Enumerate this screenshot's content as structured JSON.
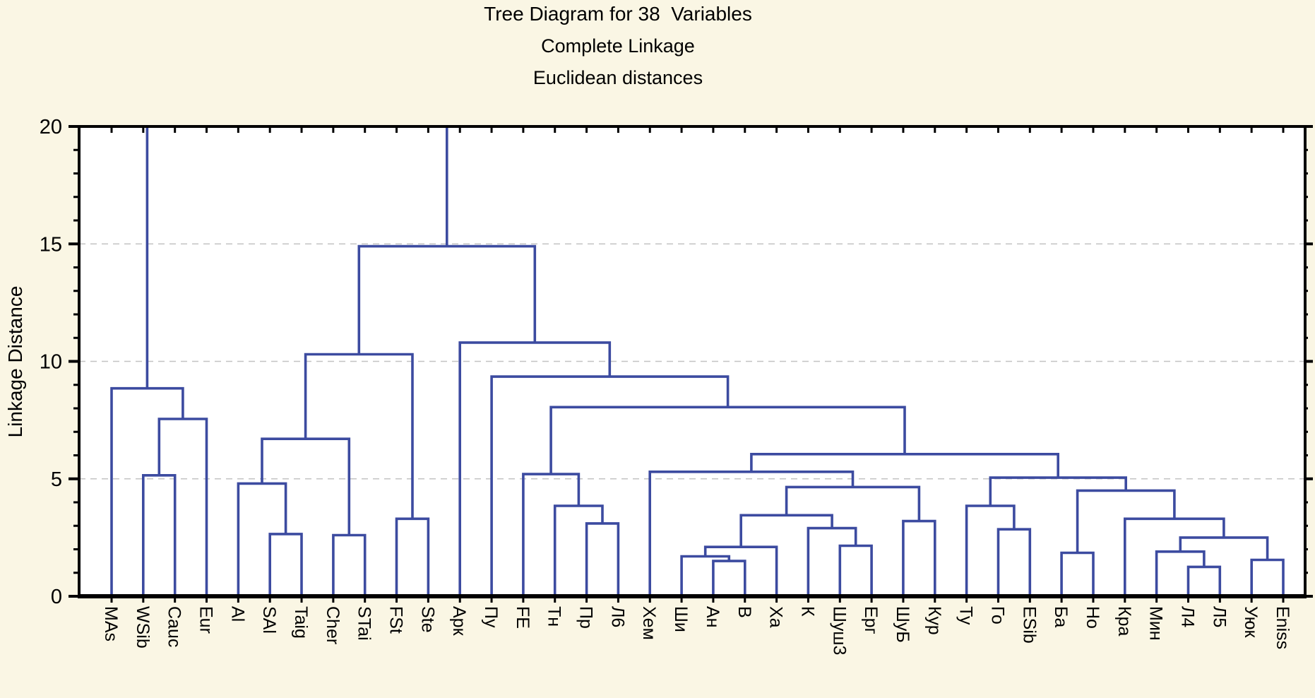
{
  "titles": {
    "line1": "Tree Diagram for 38  Variables",
    "line2": "Complete Linkage",
    "line3": "Euclidean distances"
  },
  "y_axis": {
    "label": "Linkage Distance",
    "major_ticks": [
      0,
      5,
      10,
      15,
      20
    ],
    "minor_step": 1,
    "range": [
      0,
      20
    ],
    "gridlines": [
      5,
      10,
      15
    ]
  },
  "colors": {
    "background": "#faf6e4",
    "plot_background": "#ffffff",
    "tree_line": "#3c4ba0",
    "axis": "#000000",
    "gridline": "#c3c3c3",
    "text": "#000000"
  },
  "chart_data": {
    "type": "dendrogram",
    "title": "Tree Diagram for 38  Variables",
    "subtitle1": "Complete Linkage",
    "subtitle2": "Euclidean distances",
    "ylabel": "Linkage Distance",
    "ylim": [
      0,
      20
    ],
    "grid": "dashed horizontal at 5,10,15",
    "leaves": [
      "MAs",
      "WSib",
      "Cauc",
      "Eur",
      "Al",
      "SAl",
      "Taig",
      "Cher",
      "STai",
      "FSt",
      "Ste",
      "Арк",
      "Пу",
      "FE",
      "Тн",
      "Пр",
      "Л6",
      "Хем",
      "Ши",
      "Ан",
      "В",
      "Ха",
      "К",
      "Шуш3",
      "Ерг",
      "ШуБ",
      "Кур",
      "Ту",
      "Го",
      "ESib",
      "Ба",
      "Но",
      "Кра",
      "Мин",
      "Л4",
      "Л5",
      "Уюк",
      "Eniss"
    ],
    "merges": [
      {
        "id": "c1",
        "a": "WSib",
        "b": "Cauc",
        "h": 5.15
      },
      {
        "id": "c2",
        "a": "c1",
        "b": "Eur",
        "h": 7.55
      },
      {
        "id": "c3",
        "a": "MAs",
        "b": "c2",
        "h": 8.85,
        "to_top": true
      },
      {
        "id": "c4",
        "a": "SAl",
        "b": "Taig",
        "h": 2.65
      },
      {
        "id": "c5",
        "a": "Al",
        "b": "c4",
        "h": 4.8
      },
      {
        "id": "c6",
        "a": "Cher",
        "b": "STai",
        "h": 2.6
      },
      {
        "id": "c7",
        "a": "c5",
        "b": "c6",
        "h": 6.7
      },
      {
        "id": "c8",
        "a": "FSt",
        "b": "Ste",
        "h": 3.3
      },
      {
        "id": "c9",
        "a": "c7",
        "b": "c8",
        "h": 10.3
      },
      {
        "id": "c10",
        "a": "Пр",
        "b": "Л6",
        "h": 3.1
      },
      {
        "id": "c11",
        "a": "Тн",
        "b": "c10",
        "h": 3.85
      },
      {
        "id": "c12",
        "a": "FE",
        "b": "c11",
        "h": 5.2
      },
      {
        "id": "c13",
        "a": "Ан",
        "b": "В",
        "h": 1.5
      },
      {
        "id": "c14",
        "a": "Ши",
        "b": "c13",
        "h": 1.7
      },
      {
        "id": "c15",
        "a": "c14",
        "b": "Ха",
        "h": 2.1
      },
      {
        "id": "c16",
        "a": "Шуш3",
        "b": "Ерг",
        "h": 2.15
      },
      {
        "id": "c17",
        "a": "К",
        "b": "c16",
        "h": 2.9
      },
      {
        "id": "c18",
        "a": "c15",
        "b": "c17",
        "h": 3.45
      },
      {
        "id": "c19",
        "a": "ШуБ",
        "b": "Кур",
        "h": 3.2
      },
      {
        "id": "c20",
        "a": "c18",
        "b": "c19",
        "h": 4.65
      },
      {
        "id": "c21",
        "a": "Хем",
        "b": "c20",
        "h": 5.3
      },
      {
        "id": "c22",
        "a": "Го",
        "b": "ESib",
        "h": 2.85
      },
      {
        "id": "c23",
        "a": "Ту",
        "b": "c22",
        "h": 3.85
      },
      {
        "id": "c24",
        "a": "Ба",
        "b": "Но",
        "h": 1.85
      },
      {
        "id": "c25",
        "a": "Л4",
        "b": "Л5",
        "h": 1.25
      },
      {
        "id": "c26",
        "a": "Мин",
        "b": "c25",
        "h": 1.9
      },
      {
        "id": "c27",
        "a": "Уюк",
        "b": "Eniss",
        "h": 1.55
      },
      {
        "id": "c28",
        "a": "c26",
        "b": "c27",
        "h": 2.5
      },
      {
        "id": "c29",
        "a": "Кра",
        "b": "c28",
        "h": 3.3
      },
      {
        "id": "c30",
        "a": "c24",
        "b": "c29",
        "h": 4.5
      },
      {
        "id": "c31",
        "a": "c23",
        "b": "c30",
        "h": 5.05
      },
      {
        "id": "c32",
        "a": "c21",
        "b": "c31",
        "h": 6.05
      },
      {
        "id": "c33",
        "a": "c12",
        "b": "c32",
        "h": 8.05
      },
      {
        "id": "c34",
        "a": "Пу",
        "b": "c33",
        "h": 9.35
      },
      {
        "id": "c35",
        "a": "Арк",
        "b": "c34",
        "h": 10.8
      },
      {
        "id": "c36",
        "a": "c9",
        "b": "c35",
        "h": 14.9,
        "to_top": true
      }
    ],
    "note": "Final join of the two top clusters occurs above the visible range (> 20); both cluster stems run off the top of the plot."
  }
}
